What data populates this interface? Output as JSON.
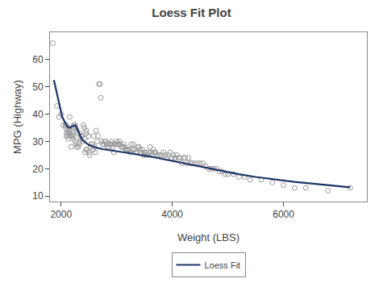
{
  "chart_data": {
    "type": "scatter",
    "title": "Loess Fit Plot",
    "x_label": "Weight (LBS)",
    "y_label": "MPG (Highway)",
    "xlim": [
      1800,
      7500
    ],
    "ylim": [
      8,
      70
    ],
    "xticks": [
      2000,
      4000,
      6000
    ],
    "yticks": [
      10,
      20,
      30,
      40,
      50,
      60
    ],
    "grid": false,
    "legend": "bottom",
    "series": [
      {
        "type": "scatter",
        "marker": "open_circle",
        "color": "#999999",
        "x": [
          1850,
          1925,
          1965,
          2000,
          2035,
          2075,
          2085,
          2090,
          2095,
          2100,
          2110,
          2120,
          2130,
          2140,
          2145,
          2150,
          2155,
          2160,
          2175,
          2180,
          2195,
          2200,
          2215,
          2225,
          2230,
          2240,
          2250,
          2255,
          2265,
          2270,
          2280,
          2285,
          2295,
          2310,
          2320,
          2330,
          2340,
          2350,
          2360,
          2375,
          2385,
          2400,
          2415,
          2420,
          2430,
          2445,
          2450,
          2460,
          2475,
          2490,
          2500,
          2515,
          2530,
          2545,
          2560,
          2575,
          2590,
          2600,
          2615,
          2630,
          2650,
          2665,
          2680,
          2700,
          2715,
          2730,
          2750,
          2765,
          2780,
          2800,
          2820,
          2835,
          2850,
          2870,
          2885,
          2900,
          2915,
          2930,
          2950,
          2965,
          2980,
          3000,
          3015,
          3030,
          3050,
          3065,
          3080,
          3100,
          3115,
          3130,
          3150,
          3165,
          3180,
          3200,
          3220,
          3240,
          3260,
          3280,
          3300,
          3320,
          3340,
          3360,
          3380,
          3400,
          3420,
          3440,
          3460,
          3480,
          3500,
          3520,
          3540,
          3560,
          3580,
          3600,
          3620,
          3640,
          3660,
          3680,
          3700,
          3720,
          3750,
          3780,
          3810,
          3840,
          3870,
          3900,
          3930,
          3960,
          3990,
          4020,
          4050,
          4080,
          4110,
          4140,
          4170,
          4200,
          4230,
          4260,
          4290,
          4320,
          4350,
          4400,
          4450,
          4500,
          4550,
          4600,
          4650,
          4700,
          4750,
          4800,
          4850,
          4900,
          4950,
          5000,
          5100,
          5200,
          5300,
          5400,
          5600,
          5800,
          6000,
          6200,
          6400,
          6800,
          7200
        ],
        "values": [
          66,
          43,
          39,
          40,
          36,
          36,
          35,
          36,
          32,
          33,
          34,
          32,
          31,
          33,
          35,
          34,
          39,
          33,
          32,
          28,
          32,
          33,
          31,
          32,
          36,
          35,
          30,
          36,
          35,
          29,
          34,
          28,
          33,
          28,
          29,
          30,
          33,
          31,
          32,
          32,
          30,
          36,
          35,
          31,
          26,
          27,
          34,
          33,
          27,
          32,
          26,
          25,
          28,
          29,
          29,
          27,
          32,
          28,
          26,
          34,
          30,
          32,
          51,
          51,
          46,
          30,
          29,
          29,
          30,
          30,
          29,
          28,
          28,
          29,
          29,
          30,
          29,
          28,
          26,
          29,
          29,
          30,
          29,
          29,
          30,
          29,
          28,
          28,
          28,
          29,
          28,
          27,
          27,
          27,
          27,
          26,
          29,
          27,
          29,
          27,
          26,
          26,
          28,
          28,
          27,
          26,
          27,
          25,
          26,
          25,
          26,
          25,
          26,
          28,
          26,
          25,
          27,
          26,
          26,
          25,
          25,
          25,
          25,
          26,
          25,
          24,
          25,
          26,
          24,
          25,
          24,
          25,
          24,
          24,
          22,
          24,
          24,
          22,
          24,
          22,
          22,
          22,
          22,
          22,
          22,
          21,
          20,
          20,
          20,
          20,
          19,
          19,
          18,
          18,
          18,
          17,
          17,
          16,
          16,
          15,
          14,
          13,
          13,
          12,
          13
        ]
      },
      {
        "type": "line",
        "name": "Loess Fit",
        "color": "#1a3566",
        "line_style": "solid",
        "x": [
          1870,
          1920,
          1970,
          2020,
          2070,
          2100,
          2130,
          2160,
          2190,
          2220,
          2250,
          2280,
          2310,
          2340,
          2370,
          2400,
          2450,
          2500,
          2560,
          2620,
          2680,
          2750,
          2820,
          2900,
          2980,
          3060,
          3140,
          3220,
          3300,
          3380,
          3460,
          3540,
          3620,
          3700,
          3800,
          3900,
          4000,
          4100,
          4200,
          4300,
          4400,
          4500,
          4600,
          4700,
          4800,
          4900,
          5000,
          5200,
          5500,
          5800,
          6200,
          6800,
          7200
        ],
        "values": [
          52.5,
          48.0,
          43.0,
          39.0,
          37.0,
          35.8,
          35.2,
          35.0,
          35.5,
          35.8,
          36.0,
          35.0,
          33.5,
          32.0,
          31.0,
          30.2,
          29.3,
          28.7,
          28.2,
          27.8,
          27.5,
          27.2,
          27.0,
          26.8,
          26.6,
          26.3,
          26.0,
          25.8,
          25.5,
          25.2,
          25.0,
          24.7,
          24.4,
          24.1,
          23.7,
          23.3,
          22.8,
          22.4,
          22.0,
          21.6,
          21.2,
          20.8,
          20.3,
          19.9,
          19.5,
          19.1,
          18.7,
          18.0,
          17.0,
          16.2,
          15.2,
          14.0,
          13.2
        ]
      }
    ]
  }
}
